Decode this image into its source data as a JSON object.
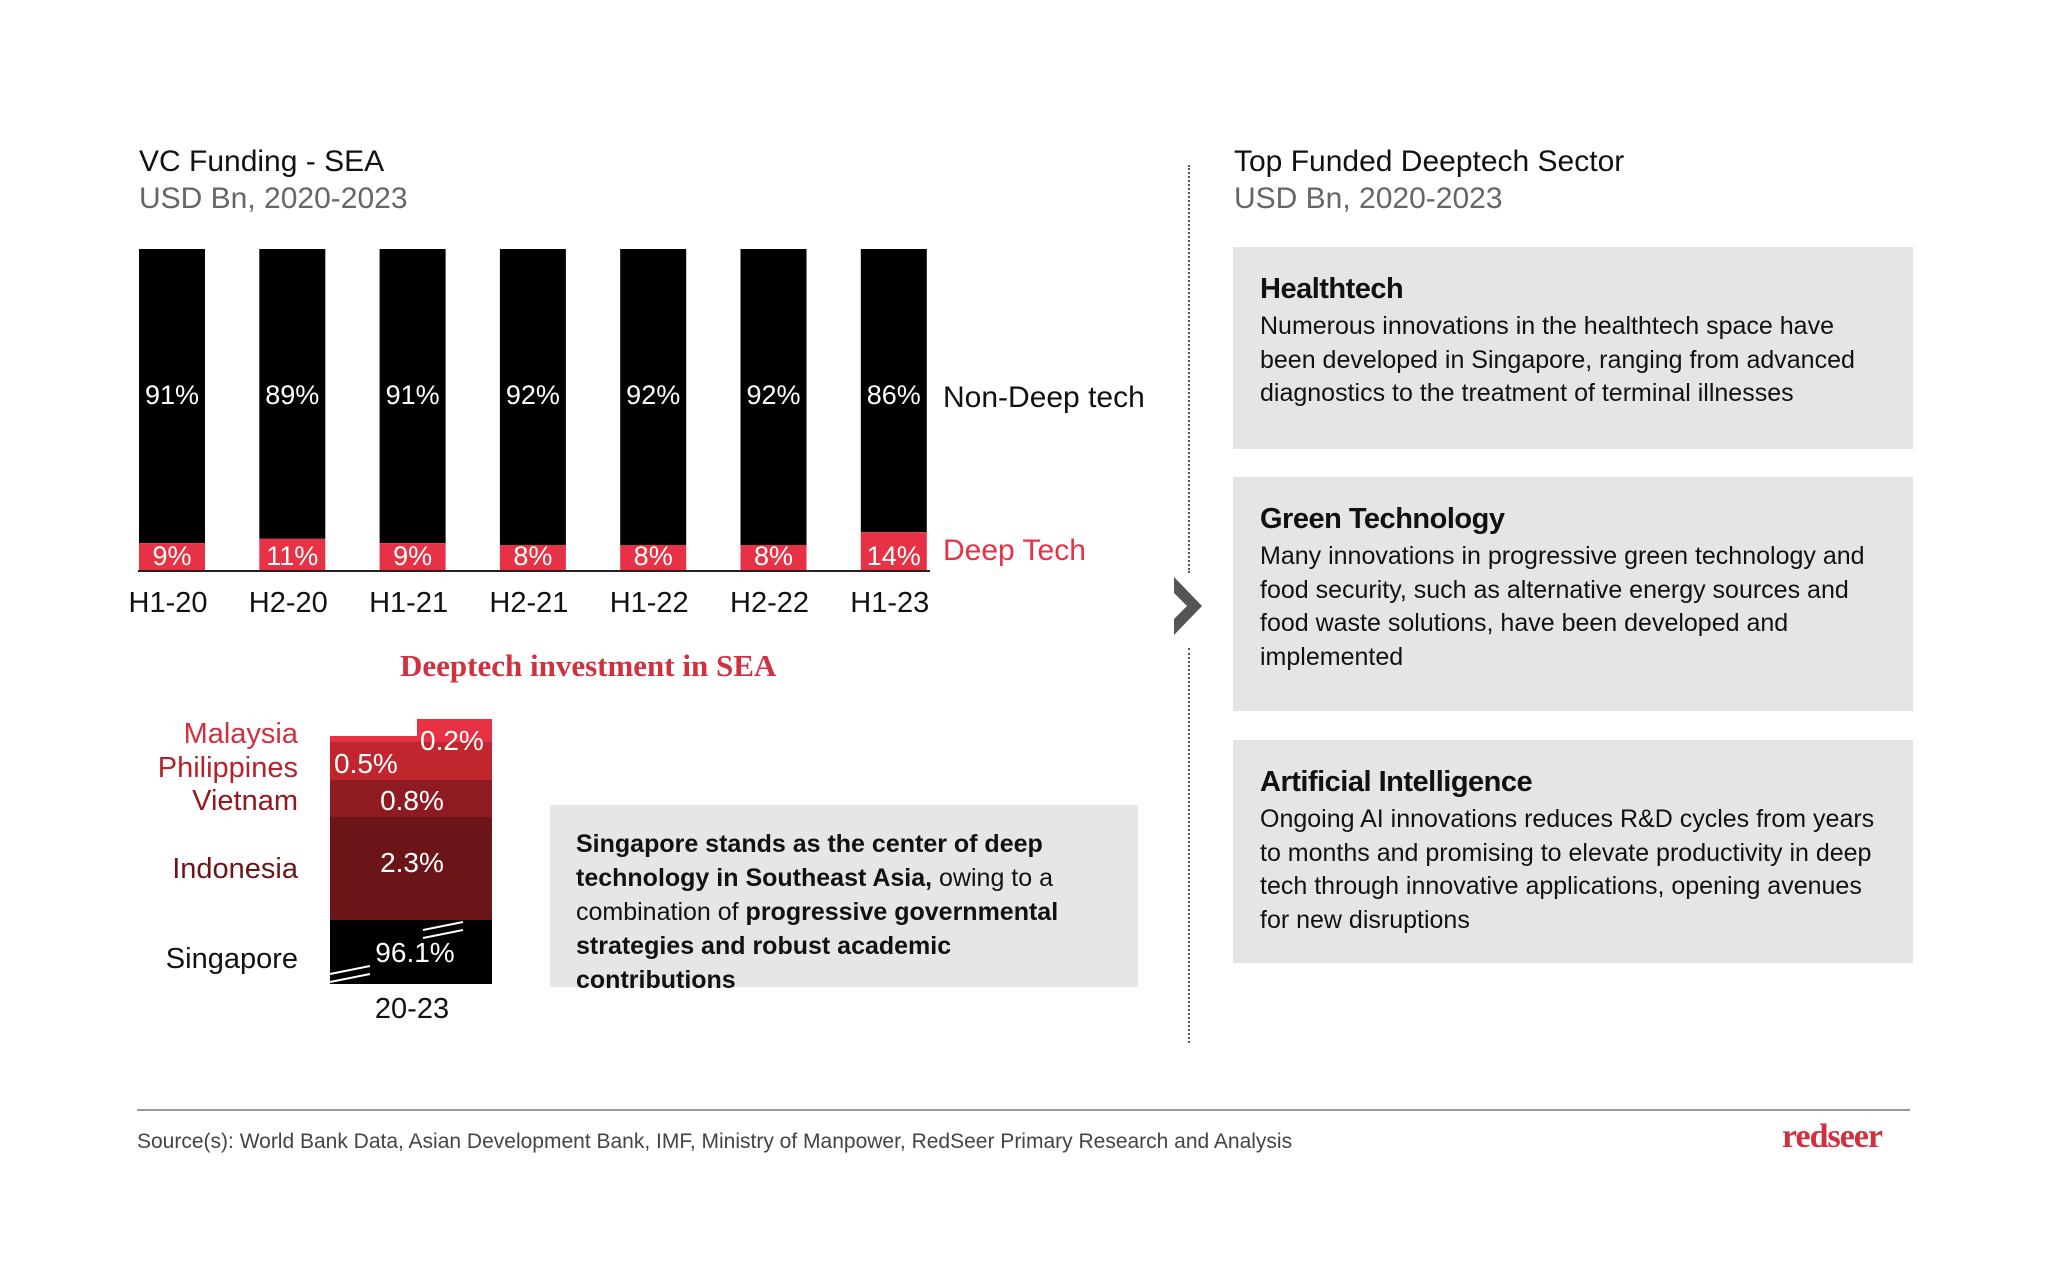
{
  "left_panel": {
    "title": "VC Funding - SEA",
    "subtitle": "USD Bn, 2020-2023"
  },
  "right_panel": {
    "title": "Top Funded Deeptech Sector",
    "subtitle": "USD Bn, 2020-2023",
    "cards": [
      {
        "title": "Healthtech",
        "body": "Numerous innovations in the healthtech space have been developed in Singapore, ranging from advanced diagnostics to the treatment of terminal illnesses"
      },
      {
        "title": "Green Technology",
        "body": "Many innovations in progressive green technology and food security, such as alternative energy sources and food waste solutions, have been developed and implemented"
      },
      {
        "title": "Artificial Intelligence",
        "body": "Ongoing AI innovations reduces R&D cycles from years to months and promising to elevate productivity in deep tech through innovative applications, opening avenues for new disruptions"
      }
    ]
  },
  "deeptech_section": {
    "title": "Deeptech investment in SEA",
    "note": {
      "part1_bold": "Singapore stands as the center of deep technology in Southeast Asia,",
      "part2": " owing to a combination of ",
      "part3_bold": "progressive governmental strategies and robust academic contributions"
    }
  },
  "colors": {
    "non_deep_tech": "#000000",
    "deep_tech": "#e63244",
    "brand_red": "#d0313f",
    "card_bg": "#e6e5e4"
  },
  "chart_data": [
    {
      "type": "bar",
      "stacked": true,
      "normalized": true,
      "title": "VC Funding - SEA",
      "subtitle": "USD Bn, 2020-2023",
      "categories": [
        "H1-20",
        "H2-20",
        "H1-21",
        "H2-21",
        "H1-22",
        "H2-22",
        "H1-23"
      ],
      "series": [
        {
          "name": "Deep Tech",
          "values": [
            9,
            11,
            9,
            8,
            8,
            8,
            14
          ],
          "labels": [
            "9%",
            "11%",
            "9%",
            "8%",
            "8%",
            "8%",
            "14%"
          ],
          "color": "#e63244"
        },
        {
          "name": "Non-Deep tech",
          "values": [
            91,
            89,
            91,
            92,
            92,
            92,
            86
          ],
          "labels": [
            "91%",
            "89%",
            "91%",
            "92%",
            "92%",
            "92%",
            "86%"
          ],
          "color": "#000000"
        }
      ],
      "ylim": [
        0,
        100
      ],
      "unit": "%",
      "legend": "right",
      "grid": false
    },
    {
      "type": "bar",
      "stacked": true,
      "normalized": true,
      "title": "Deeptech investment in SEA",
      "categories": [
        "20-23"
      ],
      "axis_break": true,
      "series": [
        {
          "name": "Singapore",
          "value": 96.1,
          "label": "96.1%",
          "color": "#000000",
          "label_color": "#111111"
        },
        {
          "name": "Indonesia",
          "value": 2.3,
          "label": "2.3%",
          "color": "#6b1519",
          "label_color": "#6b1519"
        },
        {
          "name": "Vietnam",
          "value": 0.8,
          "label": "0.8%",
          "color": "#8e1b22",
          "label_color": "#8e1b22"
        },
        {
          "name": "Philippines",
          "value": 0.5,
          "label": "0.5%",
          "color": "#c1262f",
          "label_color": "#b3232c"
        },
        {
          "name": "Malaysia",
          "value": 0.2,
          "label": "0.2%",
          "color": "#e63244",
          "label_color": "#d0313f"
        }
      ]
    }
  ],
  "footer": {
    "source": "Source(s): World Bank Data, Asian Development Bank, IMF, Ministry of Manpower, RedSeer Primary Research and Analysis",
    "brand": "redseer"
  }
}
